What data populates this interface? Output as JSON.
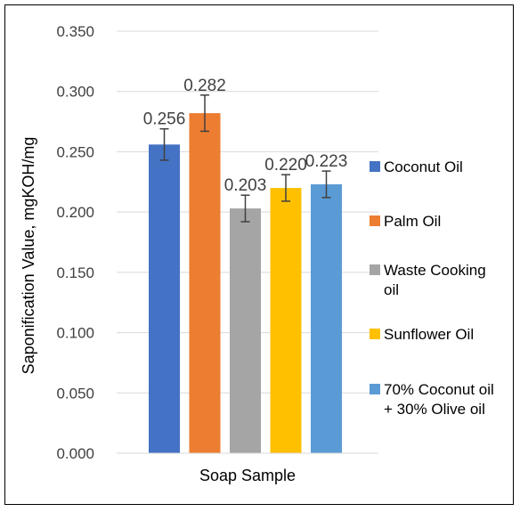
{
  "chart_data": {
    "type": "bar",
    "title": "",
    "xlabel": "Soap Sample",
    "ylabel": "Saponification Value, mgKOH/mg",
    "ylim": [
      0,
      0.35
    ],
    "yticks": [
      "0.000",
      "0.050",
      "0.100",
      "0.150",
      "0.200",
      "0.250",
      "0.300",
      "0.350"
    ],
    "grid": true,
    "legend_position": "right",
    "series": [
      {
        "name": "Coconut Oil",
        "value": 0.256,
        "label": "0.256",
        "error": 0.013,
        "color": "#4472C4"
      },
      {
        "name": "Palm Oil",
        "value": 0.282,
        "label": "0.282",
        "error": 0.015,
        "color": "#ED7D31"
      },
      {
        "name": "Waste Cooking oil",
        "value": 0.203,
        "label": "0.203",
        "error": 0.011,
        "color": "#A5A5A5"
      },
      {
        "name": "Sunflower Oil",
        "value": 0.22,
        "label": "0.220",
        "error": 0.011,
        "color": "#FFC000"
      },
      {
        "name": "70% Coconut oil + 30% Olive oil",
        "value": 0.223,
        "label": "0.223",
        "error": 0.011,
        "color": "#5B9BD5"
      }
    ]
  }
}
